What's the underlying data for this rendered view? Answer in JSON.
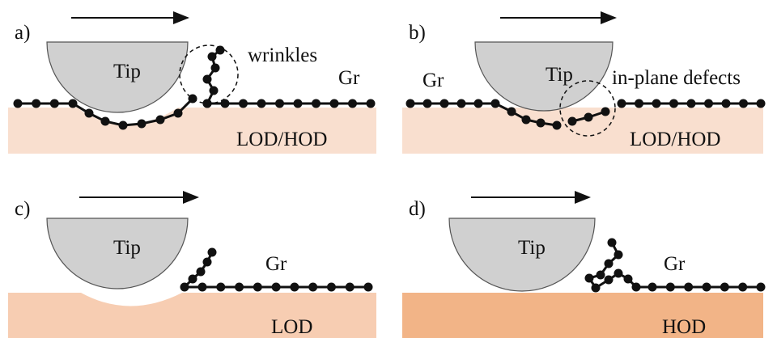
{
  "panels": [
    {
      "label": "a)",
      "tip": "Tip",
      "gr": "Gr",
      "substrate": "LOD/HOD",
      "annotation": "wrinkles"
    },
    {
      "label": "b)",
      "tip": "Tip",
      "gr": "Gr",
      "substrate": "LOD/HOD",
      "annotation": "in-plane defects"
    },
    {
      "label": "c)",
      "tip": "Tip",
      "gr": "Gr",
      "substrate": "LOD"
    },
    {
      "label": "d)",
      "tip": "Tip",
      "gr": "Gr",
      "substrate": "HOD"
    }
  ]
}
